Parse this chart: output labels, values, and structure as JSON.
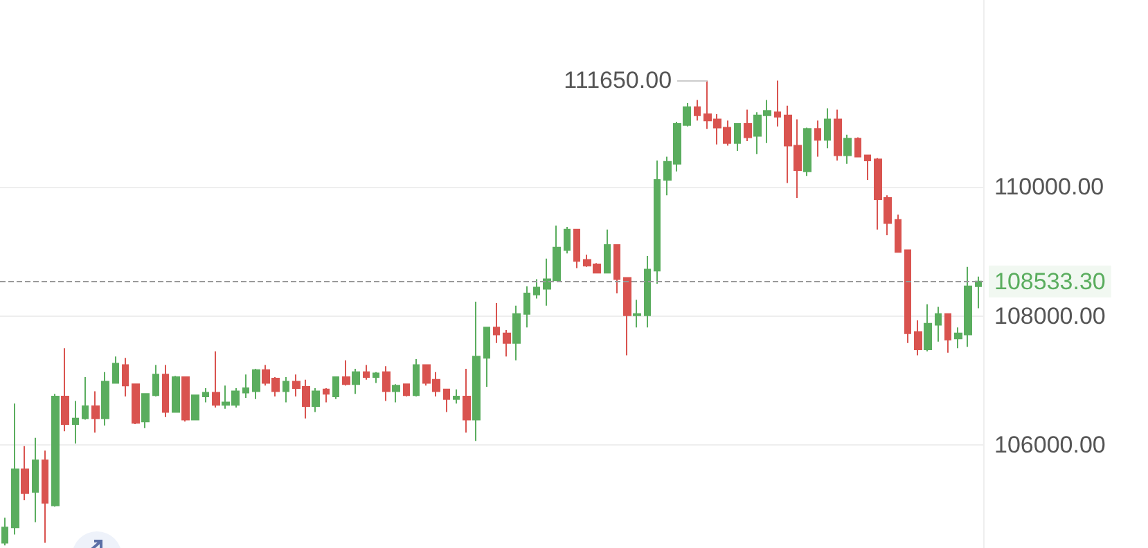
{
  "chart_data": {
    "type": "candlestick",
    "categories": [
      null,
      null,
      null,
      null,
      null,
      null,
      null,
      null,
      null,
      null,
      null,
      null,
      null,
      null,
      null,
      null,
      null,
      null,
      null,
      null,
      null,
      null,
      null,
      null,
      null,
      null,
      null,
      null,
      null,
      null,
      null,
      null,
      null,
      null,
      null,
      null,
      null,
      null,
      null,
      null,
      null,
      null,
      null,
      null,
      null,
      null,
      null,
      null,
      null,
      null,
      null,
      null,
      null,
      null,
      null,
      null,
      null,
      null,
      null,
      null,
      null,
      null,
      null,
      null,
      null,
      null,
      null,
      null,
      null,
      null,
      null,
      null,
      null,
      null,
      null,
      null,
      null,
      null,
      null,
      null,
      null,
      null,
      null,
      null,
      null,
      null,
      null,
      null,
      null,
      null,
      null,
      null,
      null,
      null,
      null,
      null,
      null,
      null
    ],
    "ohlc": [
      [
        104480,
        104870,
        104440,
        104720
      ],
      [
        104720,
        106640,
        104610,
        105620
      ],
      [
        105620,
        105980,
        105140,
        105250
      ],
      [
        105270,
        106110,
        104800,
        105760
      ],
      [
        105760,
        105910,
        104480,
        105100
      ],
      [
        105060,
        106790,
        105040,
        106750
      ],
      [
        106750,
        107500,
        106210,
        106320
      ],
      [
        106320,
        106680,
        106020,
        106410
      ],
      [
        106410,
        107050,
        106390,
        106600
      ],
      [
        106600,
        106830,
        106190,
        106410
      ],
      [
        106410,
        107130,
        106300,
        106980
      ],
      [
        106960,
        107370,
        106960,
        107260
      ],
      [
        107240,
        107350,
        106750,
        106920
      ],
      [
        106940,
        106940,
        106320,
        106340
      ],
      [
        106360,
        106790,
        106260,
        106790
      ],
      [
        106770,
        107240,
        106750,
        107090
      ],
      [
        107090,
        107240,
        106430,
        106510
      ],
      [
        106510,
        107070,
        106510,
        107050
      ],
      [
        107050,
        107050,
        106360,
        106390
      ],
      [
        106390,
        106770,
        106390,
        106770
      ],
      [
        106750,
        106880,
        106660,
        106810
      ],
      [
        106810,
        107450,
        106580,
        106620
      ],
      [
        106620,
        106920,
        106560,
        106660
      ],
      [
        106620,
        106880,
        106580,
        106830
      ],
      [
        106810,
        107090,
        106730,
        106880
      ],
      [
        106830,
        107180,
        106710,
        107160
      ],
      [
        107160,
        107240,
        106920,
        106960
      ],
      [
        107030,
        107050,
        106750,
        106830
      ],
      [
        106830,
        107050,
        106660,
        106980
      ],
      [
        106980,
        107090,
        106750,
        106880
      ],
      [
        106900,
        107010,
        106410,
        106600
      ],
      [
        106600,
        106880,
        106510,
        106830
      ],
      [
        106860,
        106880,
        106660,
        106790
      ],
      [
        106750,
        107050,
        106710,
        107050
      ],
      [
        107050,
        107310,
        106920,
        106940
      ],
      [
        106940,
        107180,
        106790,
        107130
      ],
      [
        107130,
        107240,
        107010,
        107050
      ],
      [
        107050,
        107130,
        106960,
        107110
      ],
      [
        107130,
        107220,
        106680,
        106830
      ],
      [
        106830,
        106940,
        106660,
        106920
      ],
      [
        106940,
        106940,
        106750,
        106770
      ],
      [
        106770,
        107330,
        106750,
        107240
      ],
      [
        107240,
        107240,
        106920,
        106960
      ],
      [
        107010,
        107130,
        106750,
        106830
      ],
      [
        106860,
        106860,
        106510,
        106710
      ],
      [
        106710,
        106860,
        106640,
        106750
      ],
      [
        106750,
        107180,
        106190,
        106390
      ],
      [
        106390,
        108220,
        106060,
        107370
      ],
      [
        107350,
        107820,
        106900,
        107820
      ],
      [
        107820,
        108200,
        107580,
        107710
      ],
      [
        107730,
        107780,
        107370,
        107580
      ],
      [
        107580,
        108160,
        107310,
        108030
      ],
      [
        108030,
        108460,
        107820,
        108350
      ],
      [
        108330,
        108570,
        108270,
        108440
      ],
      [
        108420,
        108890,
        108160,
        108570
      ],
      [
        108550,
        109400,
        108550,
        109060
      ],
      [
        109020,
        109380,
        108970,
        109340
      ],
      [
        109340,
        109340,
        108740,
        108850
      ],
      [
        108870,
        108950,
        108760,
        108780
      ],
      [
        108800,
        108820,
        108670,
        108670
      ],
      [
        108670,
        109340,
        108670,
        109100
      ],
      [
        109100,
        109100,
        108350,
        108570
      ],
      [
        108590,
        108590,
        107390,
        108010
      ],
      [
        108010,
        108250,
        107820,
        108030
      ],
      [
        108010,
        108930,
        107820,
        108720
      ],
      [
        108700,
        110410,
        108500,
        110110
      ],
      [
        110110,
        110470,
        109870,
        110390
      ],
      [
        110360,
        111010,
        110240,
        110980
      ],
      [
        110960,
        111300,
        110940,
        111240
      ],
      [
        111240,
        111350,
        111030,
        111110
      ],
      [
        111130,
        111650,
        110900,
        111030
      ],
      [
        111050,
        111130,
        110660,
        110920
      ],
      [
        110920,
        111030,
        110640,
        110680
      ],
      [
        110680,
        110980,
        110560,
        110980
      ],
      [
        110980,
        111200,
        110710,
        110770
      ],
      [
        110790,
        111160,
        110510,
        111110
      ],
      [
        111110,
        111350,
        110680,
        111180
      ],
      [
        111160,
        111650,
        110940,
        111090
      ],
      [
        111110,
        111260,
        110060,
        110640
      ],
      [
        110640,
        111050,
        109830,
        110260
      ],
      [
        110240,
        110920,
        110170,
        110900
      ],
      [
        110900,
        111030,
        110470,
        110730
      ],
      [
        110730,
        111220,
        110600,
        111050
      ],
      [
        111050,
        111200,
        110410,
        110490
      ],
      [
        110490,
        110810,
        110360,
        110750
      ],
      [
        110750,
        110770,
        110470,
        110470
      ],
      [
        110490,
        110490,
        110110,
        110410
      ],
      [
        110430,
        110450,
        109340,
        109810
      ],
      [
        109830,
        109870,
        109250,
        109440
      ],
      [
        109490,
        109570,
        108990,
        108990
      ],
      [
        109020,
        109020,
        107580,
        107730
      ],
      [
        107750,
        107930,
        107390,
        107480
      ],
      [
        107480,
        108180,
        107450,
        107880
      ],
      [
        107860,
        108140,
        107600,
        108030
      ],
      [
        108030,
        108030,
        107430,
        107630
      ],
      [
        107650,
        107820,
        107500,
        107730
      ],
      [
        107710,
        108760,
        107520,
        108460
      ],
      [
        108460,
        108610,
        108120,
        108533.3
      ]
    ],
    "colors": [
      "#5aad5e",
      "#5aad5e",
      "#d9534f",
      "#5aad5e",
      "#d9534f",
      "#5aad5e",
      "#d9534f",
      "#5aad5e",
      "#5aad5e",
      "#d9534f",
      "#5aad5e",
      "#5aad5e",
      "#d9534f",
      "#d9534f",
      "#5aad5e",
      "#5aad5e",
      "#d9534f",
      "#5aad5e",
      "#d9534f",
      "#5aad5e",
      "#5aad5e",
      "#d9534f",
      "#5aad5e",
      "#5aad5e",
      "#5aad5e",
      "#5aad5e",
      "#d9534f",
      "#d9534f",
      "#5aad5e",
      "#d9534f",
      "#d9534f",
      "#5aad5e",
      "#d9534f",
      "#5aad5e",
      "#d9534f",
      "#5aad5e",
      "#d9534f",
      "#5aad5e",
      "#d9534f",
      "#5aad5e",
      "#d9534f",
      "#5aad5e",
      "#d9534f",
      "#d9534f",
      "#d9534f",
      "#5aad5e",
      "#d9534f",
      "#5aad5e",
      "#5aad5e",
      "#d9534f",
      "#d9534f",
      "#5aad5e",
      "#5aad5e",
      "#5aad5e",
      "#5aad5e",
      "#5aad5e",
      "#5aad5e",
      "#d9534f",
      "#d9534f",
      "#d9534f",
      "#5aad5e",
      "#d9534f",
      "#d9534f",
      "#5aad5e",
      "#5aad5e",
      "#5aad5e",
      "#5aad5e",
      "#5aad5e",
      "#5aad5e",
      "#d9534f",
      "#d9534f",
      "#d9534f",
      "#d9534f",
      "#5aad5e",
      "#d9534f",
      "#5aad5e",
      "#5aad5e",
      "#d9534f",
      "#d9534f",
      "#d9534f",
      "#5aad5e",
      "#d9534f",
      "#5aad5e",
      "#d9534f",
      "#5aad5e",
      "#d9534f",
      "#d9534f",
      "#d9534f",
      "#d9534f",
      "#d9534f",
      "#d9534f",
      "#d9534f",
      "#5aad5e",
      "#5aad5e",
      "#d9534f",
      "#5aad5e",
      "#5aad5e",
      "#5aad5e"
    ],
    "ylim": [
      104400,
      112900
    ],
    "yticks": [
      {
        "value": 106000,
        "label": "106000.00"
      },
      {
        "value": 108000,
        "label": "108000.00"
      },
      {
        "value": 110000,
        "label": "110000.00"
      }
    ],
    "grid": "y",
    "tick_labels": "y",
    "ref_lines": [
      {
        "axis": "y",
        "value": 108533.3,
        "label": "108533.30",
        "color": "#999999",
        "line_style": "dashed"
      }
    ],
    "annotations": [
      "111650.00"
    ]
  }
}
